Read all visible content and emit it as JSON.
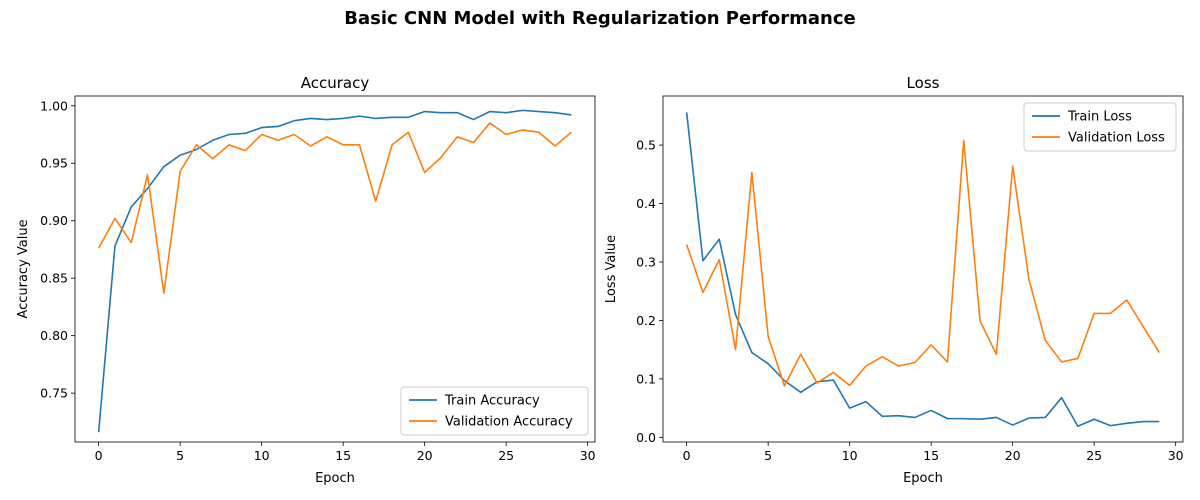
{
  "figure": {
    "title": "Basic CNN Model with Regularization Performance"
  },
  "colors": {
    "train": "#1f77b4",
    "validation": "#ff7f0e"
  },
  "chart_data": [
    {
      "type": "line",
      "title": "Accuracy",
      "xlabel": "Epoch",
      "ylabel": "Accuracy Value",
      "xlim": [
        -1.45,
        30.45
      ],
      "ylim": [
        0.7075,
        1.0085
      ],
      "xticks": [
        0,
        5,
        10,
        15,
        20,
        25,
        30
      ],
      "yticks": [
        0.75,
        0.8,
        0.85,
        0.9,
        0.95,
        1.0
      ],
      "ytick_labels": [
        "0.75",
        "0.80",
        "0.85",
        "0.90",
        "0.95",
        "1.00"
      ],
      "legend_position": "lower-right",
      "x": [
        0,
        1,
        2,
        3,
        4,
        5,
        6,
        7,
        8,
        9,
        10,
        11,
        12,
        13,
        14,
        15,
        16,
        17,
        18,
        19,
        20,
        21,
        22,
        23,
        24,
        25,
        26,
        27,
        28,
        29
      ],
      "series": [
        {
          "name": "Train Accuracy",
          "values": [
            0.716,
            0.878,
            0.912,
            0.928,
            0.947,
            0.957,
            0.962,
            0.97,
            0.975,
            0.976,
            0.981,
            0.982,
            0.987,
            0.989,
            0.988,
            0.989,
            0.991,
            0.989,
            0.99,
            0.99,
            0.995,
            0.994,
            0.994,
            0.988,
            0.995,
            0.994,
            0.996,
            0.995,
            0.994,
            0.992
          ]
        },
        {
          "name": "Validation Accuracy",
          "values": [
            0.876,
            0.902,
            0.881,
            0.94,
            0.837,
            0.943,
            0.966,
            0.954,
            0.966,
            0.961,
            0.975,
            0.97,
            0.975,
            0.965,
            0.973,
            0.966,
            0.966,
            0.917,
            0.966,
            0.977,
            0.942,
            0.955,
            0.973,
            0.968,
            0.985,
            0.975,
            0.979,
            0.977,
            0.965,
            0.977
          ]
        }
      ]
    },
    {
      "type": "line",
      "title": "Loss",
      "xlabel": "Epoch",
      "ylabel": "Loss Value",
      "xlim": [
        -1.45,
        30.45
      ],
      "ylim": [
        -0.008,
        0.584
      ],
      "xticks": [
        0,
        5,
        10,
        15,
        20,
        25,
        30
      ],
      "yticks": [
        0.0,
        0.1,
        0.2,
        0.3,
        0.4,
        0.5
      ],
      "ytick_labels": [
        "0.0",
        "0.1",
        "0.2",
        "0.3",
        "0.4",
        "0.5"
      ],
      "legend_position": "upper-right",
      "x": [
        0,
        1,
        2,
        3,
        4,
        5,
        6,
        7,
        8,
        9,
        10,
        11,
        12,
        13,
        14,
        15,
        16,
        17,
        18,
        19,
        20,
        21,
        22,
        23,
        24,
        25,
        26,
        27,
        28,
        29
      ],
      "series": [
        {
          "name": "Train Loss",
          "values": [
            0.556,
            0.302,
            0.339,
            0.21,
            0.145,
            0.126,
            0.097,
            0.077,
            0.095,
            0.098,
            0.05,
            0.061,
            0.036,
            0.037,
            0.034,
            0.046,
            0.032,
            0.032,
            0.031,
            0.034,
            0.021,
            0.033,
            0.034,
            0.068,
            0.019,
            0.031,
            0.02,
            0.024,
            0.027,
            0.027
          ]
        },
        {
          "name": "Validation Loss",
          "values": [
            0.33,
            0.248,
            0.304,
            0.15,
            0.453,
            0.173,
            0.088,
            0.142,
            0.093,
            0.111,
            0.089,
            0.122,
            0.138,
            0.122,
            0.128,
            0.158,
            0.129,
            0.508,
            0.199,
            0.142,
            0.464,
            0.27,
            0.166,
            0.129,
            0.135,
            0.212,
            0.212,
            0.235,
            0.19,
            0.145
          ]
        }
      ]
    }
  ]
}
